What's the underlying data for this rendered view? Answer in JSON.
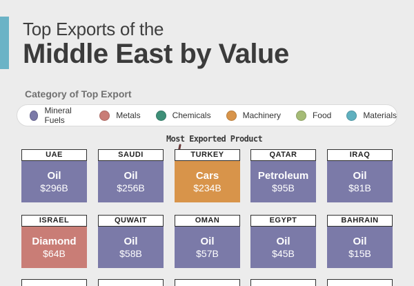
{
  "header": {
    "title_line1": "Top Exports of the",
    "title_line2": "Middle East by Value"
  },
  "legend": {
    "title": "Category of Top Export",
    "items": [
      {
        "label": "Mineral Fuels",
        "color": "#7b7aa8"
      },
      {
        "label": "Metals",
        "color": "#c97d76"
      },
      {
        "label": "Chemicals",
        "color": "#3e8f78"
      },
      {
        "label": "Machinery",
        "color": "#d8944a"
      },
      {
        "label": "Food",
        "color": "#a5bb76"
      },
      {
        "label": "Materials",
        "color": "#5fb0bf"
      }
    ]
  },
  "annotation": "Most Exported Product",
  "chart_data": {
    "type": "table",
    "units": "USD billions",
    "rows": [
      {
        "country": "UAE",
        "product": "Oil",
        "value_label": "$296B",
        "value": 296,
        "category": "Mineral Fuels",
        "color": "#7b7aa8"
      },
      {
        "country": "SAUDI",
        "product": "Oil",
        "value_label": "$256B",
        "value": 256,
        "category": "Mineral Fuels",
        "color": "#7b7aa8"
      },
      {
        "country": "TURKEY",
        "product": "Cars",
        "value_label": "$234B",
        "value": 234,
        "category": "Machinery",
        "color": "#d8944a"
      },
      {
        "country": "QATAR",
        "product": "Petroleum",
        "value_label": "$95B",
        "value": 95,
        "category": "Mineral Fuels",
        "color": "#7b7aa8"
      },
      {
        "country": "IRAQ",
        "product": "Oil",
        "value_label": "$81B",
        "value": 81,
        "category": "Mineral Fuels",
        "color": "#7b7aa8"
      },
      {
        "country": "ISRAEL",
        "product": "Diamond",
        "value_label": "$64B",
        "value": 64,
        "category": "Metals",
        "color": "#c97d76"
      },
      {
        "country": "QUWAIT",
        "product": "Oil",
        "value_label": "$58B",
        "value": 58,
        "category": "Mineral Fuels",
        "color": "#7b7aa8"
      },
      {
        "country": "OMAN",
        "product": "Oil",
        "value_label": "$57B",
        "value": 57,
        "category": "Mineral Fuels",
        "color": "#7b7aa8"
      },
      {
        "country": "EGYPT",
        "product": "Oil",
        "value_label": "$45B",
        "value": 45,
        "category": "Mineral Fuels",
        "color": "#7b7aa8"
      },
      {
        "country": "BAHRAIN",
        "product": "Oil",
        "value_label": "$15B",
        "value": 15,
        "category": "Mineral Fuels",
        "color": "#7b7aa8"
      }
    ]
  }
}
